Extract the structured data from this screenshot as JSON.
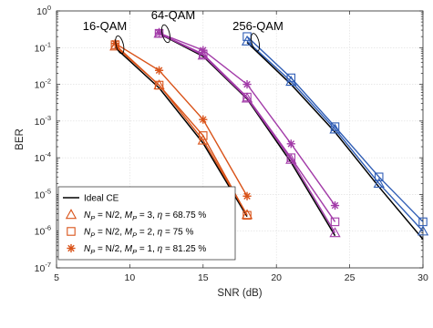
{
  "chart_data": {
    "type": "line",
    "xlabel": "SNR (dB)",
    "ylabel": "BER",
    "xlim": [
      5,
      30
    ],
    "ylim": [
      1e-07,
      1
    ],
    "yscale": "log",
    "xticks": [
      "5",
      "10",
      "15",
      "20",
      "25",
      "30"
    ],
    "yticks": [
      {
        "base": "10",
        "exp": "0"
      },
      {
        "base": "10",
        "exp": "-1"
      },
      {
        "base": "10",
        "exp": "-2"
      },
      {
        "base": "10",
        "exp": "-3"
      },
      {
        "base": "10",
        "exp": "-4"
      },
      {
        "base": "10",
        "exp": "-5"
      },
      {
        "base": "10",
        "exp": "-6"
      },
      {
        "base": "10",
        "exp": "-7"
      }
    ],
    "grid": true,
    "legend_position": "lower-left",
    "annotations": [
      "16-QAM",
      "64-QAM",
      "256-QAM"
    ],
    "colors": {
      "ideal": "#000000",
      "m3": "#d95319",
      "m2": "#d95319",
      "m1": "#d95319",
      "qam16": "#d95319",
      "qam64": "#a23ba8",
      "qam256": "#2f5db5"
    },
    "legend": [
      {
        "key": "ideal",
        "marker": "none",
        "parts": [
          {
            "t": "Ideal CE"
          }
        ]
      },
      {
        "key": "m3",
        "marker": "triangle",
        "parts": [
          {
            "t": "N",
            "i": true
          },
          {
            "t": "P",
            "sub": true
          },
          {
            "t": " =  N/2,  "
          },
          {
            "t": "M",
            "i": true
          },
          {
            "t": "P",
            "sub": true
          },
          {
            "t": " = 3, "
          },
          {
            "t": "η",
            "i": true
          },
          {
            "t": " = 68.75 %"
          }
        ]
      },
      {
        "key": "m2",
        "marker": "square",
        "parts": [
          {
            "t": "N",
            "i": true
          },
          {
            "t": "P",
            "sub": true
          },
          {
            "t": " =  N/2,  "
          },
          {
            "t": "M",
            "i": true
          },
          {
            "t": "P",
            "sub": true
          },
          {
            "t": " = 2, "
          },
          {
            "t": "η",
            "i": true
          },
          {
            "t": " = 75 %"
          }
        ]
      },
      {
        "key": "m1",
        "marker": "star",
        "parts": [
          {
            "t": "N",
            "i": true
          },
          {
            "t": "P",
            "sub": true
          },
          {
            "t": " =  N/2,  "
          },
          {
            "t": "M",
            "i": true
          },
          {
            "t": "P",
            "sub": true
          },
          {
            "t": " = 1, "
          },
          {
            "t": "η",
            "i": true
          },
          {
            "t": " = 81.25 %"
          }
        ]
      }
    ],
    "series": [
      {
        "group": "16-QAM",
        "key": "ideal",
        "marker": "none",
        "x": [
          9,
          12,
          15,
          18
        ],
        "y": [
          0.1,
          0.008,
          0.00025,
          2.5e-06
        ]
      },
      {
        "group": "16-QAM",
        "key": "m3",
        "marker": "triangle",
        "x": [
          9,
          12,
          15,
          18
        ],
        "y": [
          0.11,
          0.0095,
          0.0003,
          2.8e-06
        ]
      },
      {
        "group": "16-QAM",
        "key": "m2",
        "marker": "square",
        "x": [
          9,
          12,
          15,
          18
        ],
        "y": [
          0.12,
          0.0095,
          0.0004,
          2.7e-06
        ]
      },
      {
        "group": "16-QAM",
        "key": "m1",
        "marker": "star",
        "x": [
          9,
          12,
          15,
          18
        ],
        "y": [
          0.13,
          0.024,
          0.0011,
          9e-06
        ]
      },
      {
        "group": "64-QAM",
        "key": "ideal",
        "marker": "none",
        "x": [
          12,
          15,
          18,
          21,
          24
        ],
        "y": [
          0.24,
          0.058,
          0.004,
          7.5e-05,
          7.5e-07
        ]
      },
      {
        "group": "64-QAM",
        "key": "m3",
        "marker": "triangle",
        "x": [
          12,
          15,
          18,
          21,
          24
        ],
        "y": [
          0.245,
          0.062,
          0.0042,
          9e-05,
          9e-07
        ]
      },
      {
        "group": "64-QAM",
        "key": "m2",
        "marker": "square",
        "x": [
          12,
          15,
          18,
          21,
          24
        ],
        "y": [
          0.245,
          0.067,
          0.0045,
          0.0001,
          1.8e-06
        ]
      },
      {
        "group": "64-QAM",
        "key": "m1",
        "marker": "star",
        "x": [
          12,
          15,
          18,
          21,
          24
        ],
        "y": [
          0.25,
          0.085,
          0.01,
          0.00024,
          5e-06
        ]
      },
      {
        "group": "256-QAM",
        "key": "ideal",
        "marker": "none",
        "x": [
          18,
          21,
          24,
          27,
          30
        ],
        "y": [
          0.14,
          0.01,
          0.0005,
          1.6e-05,
          6e-07
        ]
      },
      {
        "group": "256-QAM",
        "key": "m3",
        "marker": "triangle",
        "x": [
          18,
          21,
          24,
          27,
          30
        ],
        "y": [
          0.15,
          0.012,
          0.0006,
          2e-05,
          1e-06
        ]
      },
      {
        "group": "256-QAM",
        "key": "m2",
        "marker": "square",
        "x": [
          18,
          21,
          24,
          27,
          30
        ],
        "y": [
          0.2,
          0.015,
          0.0007,
          3e-05,
          1.8e-06
        ]
      }
    ]
  }
}
